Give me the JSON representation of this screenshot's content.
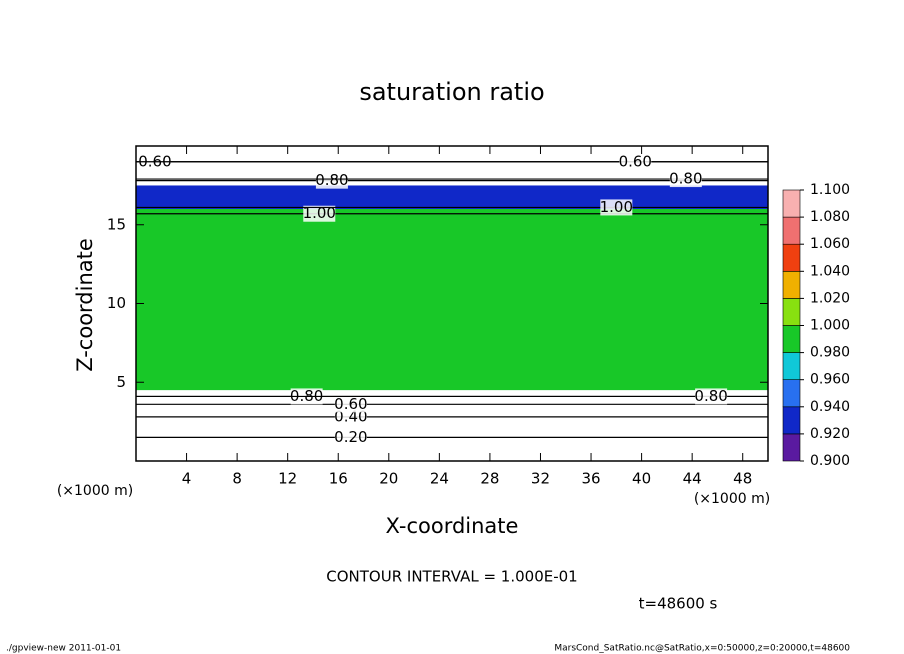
{
  "chart_data": {
    "type": "contour",
    "title": "saturation ratio",
    "xlabel": "X-coordinate",
    "ylabel": "Z-coordinate",
    "unit_label": "(×1000 m)",
    "xlim": [
      0,
      50
    ],
    "xticks": [
      4,
      8,
      12,
      16,
      20,
      24,
      28,
      32,
      36,
      40,
      44,
      48
    ],
    "ylim": [
      0,
      20
    ],
    "yticks": [
      5,
      10,
      15
    ],
    "field": {
      "z_edges": [
        0,
        4.5,
        16,
        17.5,
        20
      ],
      "values": [
        0.5,
        0.99,
        0.94,
        0.7
      ]
    },
    "colorbar": {
      "ticks": [
        {
          "value": 0.9,
          "label": "0.900"
        },
        {
          "value": 0.92,
          "label": "0.920"
        },
        {
          "value": 0.94,
          "label": "0.940"
        },
        {
          "value": 0.96,
          "label": "0.960"
        },
        {
          "value": 0.98,
          "label": "0.980"
        },
        {
          "value": 1.0,
          "label": "1.000"
        },
        {
          "value": 1.02,
          "label": "1.020"
        },
        {
          "value": 1.04,
          "label": "1.040"
        },
        {
          "value": 1.06,
          "label": "1.060"
        },
        {
          "value": 1.08,
          "label": "1.080"
        },
        {
          "value": 1.1,
          "label": "1.100"
        }
      ],
      "colors": [
        "#5a1aa0",
        "#1028c8",
        "#2870f0",
        "#10c8d8",
        "#18c828",
        "#88e010",
        "#f0b000",
        "#f04010",
        "#f07070",
        "#f8b0b0"
      ]
    },
    "contours": [
      {
        "value": 0.2,
        "label": "0.20",
        "z": 1.5,
        "x": 17
      },
      {
        "value": 0.4,
        "label": "0.40",
        "z": 2.8,
        "x": 17
      },
      {
        "value": 0.6,
        "label": "0.60",
        "z": 3.6,
        "x": 17
      },
      {
        "value": 0.8,
        "label": "0.80",
        "z": 4.1,
        "x": 13.5
      },
      {
        "value": 0.8,
        "label": "0.80",
        "z": 4.1,
        "x": 45.5
      },
      {
        "value": 0.8,
        "label": "0.80",
        "z": 17.8,
        "x": 15.5
      },
      {
        "value": 0.6,
        "label": "0.60",
        "z": 19.0,
        "x": 1.5
      },
      {
        "value": 0.6,
        "label": "0.60",
        "z": 19.0,
        "x": 39.5
      },
      {
        "value": 0.8,
        "label": "0.80",
        "z": 17.9,
        "x": 43.5
      },
      {
        "value": 1.0,
        "label": "1.00",
        "z": 15.7,
        "x": 14.5
      },
      {
        "value": 1.0,
        "label": "1.00",
        "z": 16.1,
        "x": 38
      }
    ],
    "contour_interval": "CONTOUR INTERVAL = 1.000E-01",
    "time": "t=48600 s",
    "footer_left": "./gpview-new  2011-01-01",
    "footer_right": "MarsCond_SatRatio.nc@SatRatio,x=0:50000,z=0:20000,t=48600"
  }
}
